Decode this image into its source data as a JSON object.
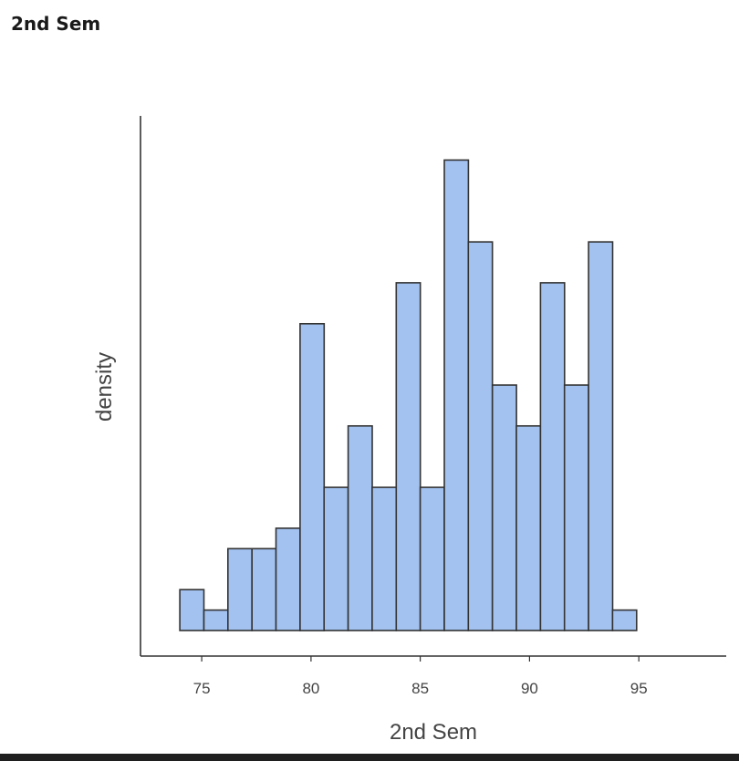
{
  "page": {
    "title": "2nd Sem"
  },
  "chart_data": {
    "type": "bar",
    "title": "",
    "xlabel": "2nd Sem",
    "ylabel": "density",
    "bar_color": "#a3c2f0",
    "edge_color": "#333333",
    "bin_edges": [
      74.0,
      75.1,
      76.2,
      77.3,
      78.4,
      79.5,
      80.6,
      81.7,
      82.8,
      83.9,
      85.0,
      86.1,
      87.2,
      88.3,
      89.4,
      90.5,
      91.6,
      92.7,
      93.8,
      94.9,
      96.0
    ],
    "values": [
      2,
      1,
      4,
      4,
      5,
      15,
      7,
      10,
      7,
      17,
      7,
      23,
      19,
      12,
      10,
      17,
      12,
      19,
      1,
      0
    ],
    "x_ticks": [
      75,
      80,
      85,
      90,
      95
    ],
    "xlim": [
      72.2,
      99.0
    ],
    "ylim": [
      0,
      24
    ],
    "grid": false
  }
}
